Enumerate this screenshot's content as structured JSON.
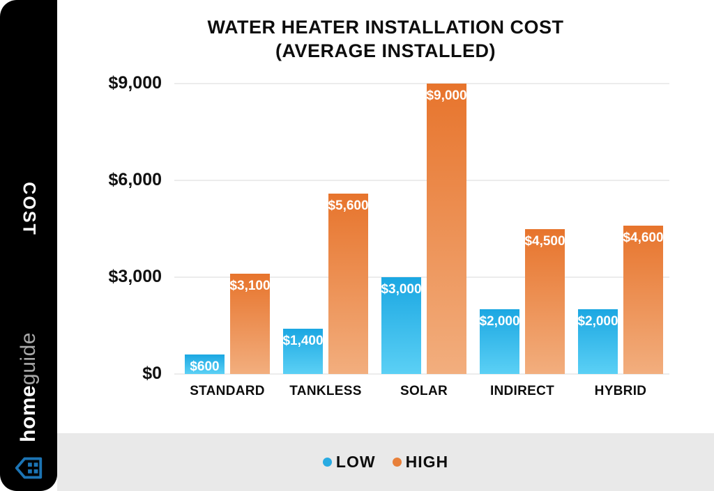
{
  "sidebar": {
    "axis_label": "COST",
    "brand_bold": "home",
    "brand_light": "guide",
    "brand_icon_color": "#1c74b4"
  },
  "chart_data": {
    "type": "bar",
    "title_line1": "WATER HEATER INSTALLATION COST",
    "title_line2": "(AVERAGE INSTALLED)",
    "ylabel": "COST",
    "categories": [
      "STANDARD",
      "TANKLESS",
      "SOLAR",
      "INDIRECT",
      "HYBRID"
    ],
    "series": [
      {
        "name": "LOW",
        "values": [
          600,
          1400,
          3000,
          2000,
          2000
        ],
        "labels": [
          "$600",
          "$1,400",
          "$3,000",
          "$2,000",
          "$2,000"
        ],
        "color_top": "#1ba7e2",
        "color_bottom": "#5bd0f5",
        "legend_color": "#29abe2"
      },
      {
        "name": "HIGH",
        "values": [
          3100,
          5600,
          9000,
          4500,
          4600
        ],
        "labels": [
          "$3,100",
          "$5,600",
          "$9,000",
          "$4,500",
          "$4,600"
        ],
        "color_top": "#e7742c",
        "color_bottom": "#f2ae7e",
        "legend_color": "#e8803a"
      }
    ],
    "y_ticks": [
      {
        "label": "$0",
        "value": 0
      },
      {
        "label": "$3,000",
        "value": 3000
      },
      {
        "label": "$6,000",
        "value": 6000
      },
      {
        "label": "$9,000",
        "value": 9000
      }
    ],
    "ylim": [
      0,
      9000
    ],
    "grid": true,
    "legend_position": "bottom"
  }
}
